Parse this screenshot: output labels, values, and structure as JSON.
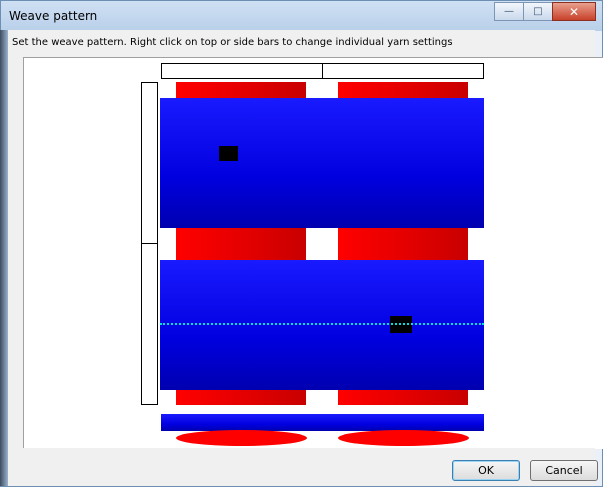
{
  "window": {
    "title": "Weave pattern",
    "controls": {
      "minimize": "minimize-icon",
      "maximize": "maximize-icon",
      "close": "close-icon"
    }
  },
  "instruction": "Set the weave pattern. Right click on top or side bars to change individual yarn settings",
  "colors": {
    "warp": "#ff0000",
    "weft": "#0000e0",
    "interlace": "#000000",
    "selection": "#00e0e0"
  },
  "buttons": {
    "ok": "OK",
    "cancel": "Cancel"
  }
}
